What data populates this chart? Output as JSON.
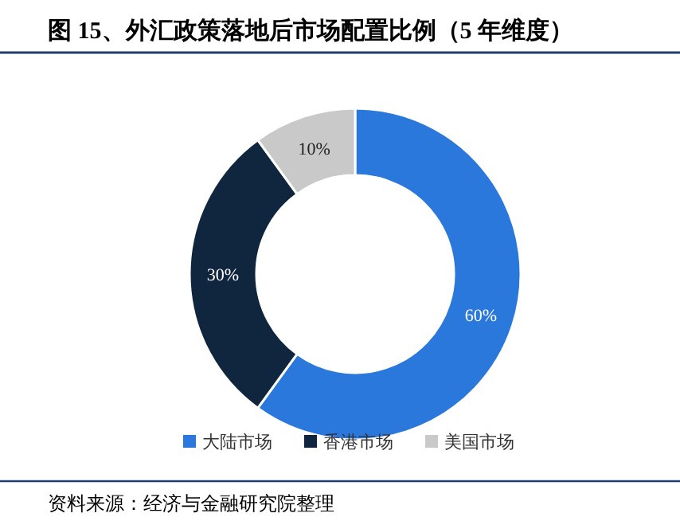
{
  "chart_data": {
    "type": "donut",
    "title": "图 15、外汇政策落地后市场配置比例（5 年维度）",
    "categories": [
      "大陆市场",
      "香港市场",
      "美国市场"
    ],
    "values": [
      60,
      30,
      10
    ],
    "colors": [
      "#2b78dc",
      "#10263e",
      "#c9c9c9"
    ],
    "value_labels": [
      "60%",
      "30%",
      "10%"
    ],
    "legend": "bottom",
    "annotations": [
      "资料来源：经济与金融研究院整理"
    ]
  }
}
